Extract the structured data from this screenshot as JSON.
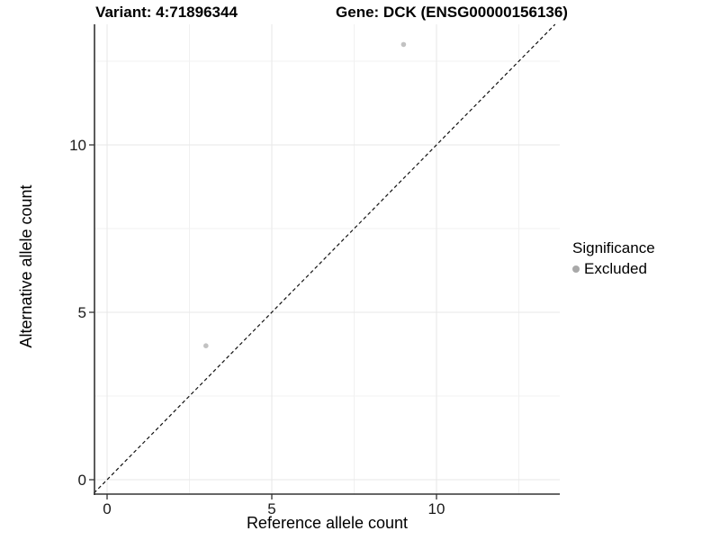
{
  "chart_data": {
    "type": "scatter",
    "panel_titles": [
      "Variant: 4:71896344",
      "Gene: DCK (ENSG00000156136)"
    ],
    "xlabel": "Reference allele count",
    "ylabel": "Alternative allele count",
    "x_ticks": [
      0,
      5,
      10
    ],
    "y_ticks": [
      0,
      5,
      10
    ],
    "xlim": [
      -0.4,
      13.7
    ],
    "ylim": [
      -0.45,
      13.6
    ],
    "grid": {
      "major": [
        0,
        5,
        10
      ],
      "minor": [
        2.5,
        7.5,
        12.5
      ]
    },
    "series": [
      {
        "name": "Excluded",
        "color": "#c2c2c2",
        "points": [
          [
            3,
            4
          ],
          [
            9,
            13
          ]
        ]
      }
    ],
    "reference_line": {
      "kind": "identity y=x",
      "dashed": true,
      "color": "#111111"
    },
    "legend": {
      "title": "Significance",
      "position": "right",
      "items": [
        {
          "label": "Excluded",
          "color": "#a9a9a9"
        }
      ]
    },
    "colors": {
      "axis_line": "#333333",
      "tick_mark": "#333333",
      "tick_label": "#1a1a1a",
      "grid_major": "#e7e7e7",
      "grid_minor": "#f1f1f1",
      "background": "#ffffff"
    }
  }
}
